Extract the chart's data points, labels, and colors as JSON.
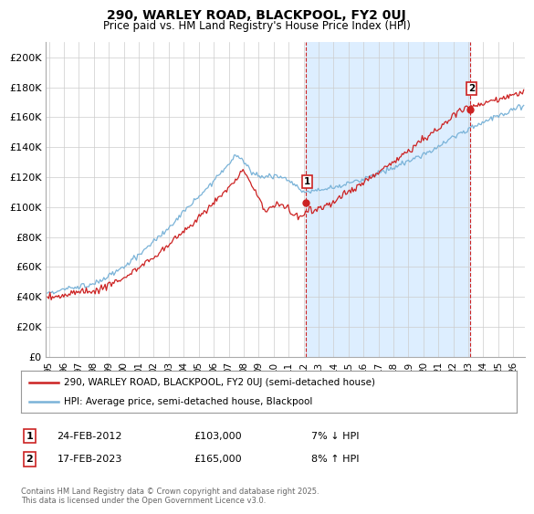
{
  "title1": "290, WARLEY ROAD, BLACKPOOL, FY2 0UJ",
  "title2": "Price paid vs. HM Land Registry's House Price Index (HPI)",
  "ylabel_ticks": [
    "£0",
    "£20K",
    "£40K",
    "£60K",
    "£80K",
    "£100K",
    "£120K",
    "£140K",
    "£160K",
    "£180K",
    "£200K"
  ],
  "ytick_values": [
    0,
    20000,
    40000,
    60000,
    80000,
    100000,
    120000,
    140000,
    160000,
    180000,
    200000
  ],
  "ylim": [
    0,
    210000
  ],
  "xlim_start": 1994.8,
  "xlim_end": 2026.8,
  "hpi_color": "#7ab3d8",
  "price_color": "#cc2222",
  "fill_color": "#ddeeff",
  "marker1_x": 2012.13,
  "marker1_y": 103000,
  "marker2_x": 2023.12,
  "marker2_y": 165000,
  "legend_label1": "290, WARLEY ROAD, BLACKPOOL, FY2 0UJ (semi-detached house)",
  "legend_label2": "HPI: Average price, semi-detached house, Blackpool",
  "annotation1_label": "24-FEB-2012",
  "annotation1_price": "£103,000",
  "annotation1_hpi": "7% ↓ HPI",
  "annotation2_label": "17-FEB-2023",
  "annotation2_price": "£165,000",
  "annotation2_hpi": "8% ↑ HPI",
  "footnote": "Contains HM Land Registry data © Crown copyright and database right 2025.\nThis data is licensed under the Open Government Licence v3.0.",
  "bg_color": "#ffffff",
  "grid_color": "#cccccc",
  "xtick_years": [
    1995,
    1996,
    1997,
    1998,
    1999,
    2000,
    2001,
    2002,
    2003,
    2004,
    2005,
    2006,
    2007,
    2008,
    2009,
    2010,
    2011,
    2012,
    2013,
    2014,
    2015,
    2016,
    2017,
    2018,
    2019,
    2020,
    2021,
    2022,
    2023,
    2024,
    2025,
    2026
  ]
}
